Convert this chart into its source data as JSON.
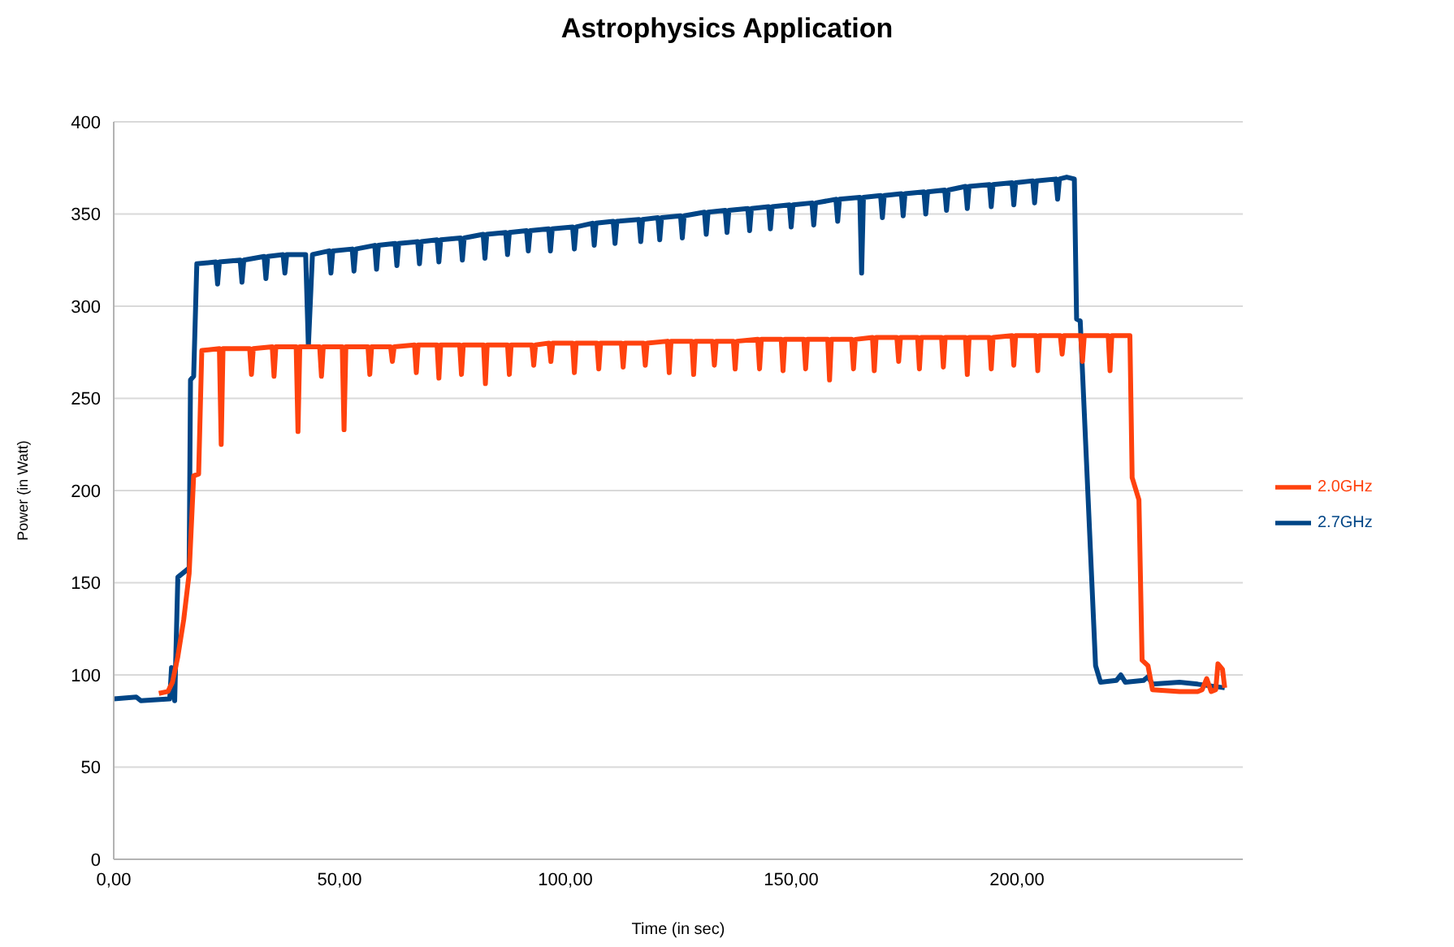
{
  "chart_data": {
    "type": "line",
    "title": "Astrophysics Application",
    "xlabel": "Time (in sec)",
    "ylabel": "Power (in Watt)",
    "xlim": [
      0,
      250
    ],
    "xticks": [
      {
        "value": 0,
        "label": "0,00"
      },
      {
        "value": 50,
        "label": "50,00"
      },
      {
        "value": 100,
        "label": "100,00"
      },
      {
        "value": 150,
        "label": "150,00"
      },
      {
        "value": 200,
        "label": "200,00"
      }
    ],
    "ylim": [
      0,
      400
    ],
    "yticks": [
      0,
      50,
      100,
      150,
      200,
      250,
      300,
      350,
      400
    ],
    "grid": "y",
    "legend": "right",
    "marker": "none",
    "line_style": "solid",
    "series": [
      {
        "name": "2.7GHz",
        "color": "#004586",
        "x": [
          0,
          5,
          6,
          12.4,
          12.8,
          13.5,
          14.2,
          16.7,
          17,
          17.7,
          18.4,
          22.6,
          23,
          23.4,
          28,
          28.4,
          28.8,
          33.3,
          33.7,
          34.1,
          37.5,
          37.9,
          38.3,
          42.5,
          43.1,
          44,
          47.7,
          48.1,
          48.5,
          52.8,
          53.2,
          53.6,
          57.8,
          58.2,
          58.6,
          62.3,
          62.7,
          63.1,
          67.3,
          67.7,
          68.1,
          71.6,
          72,
          72.4,
          76.8,
          77.2,
          77.6,
          81.8,
          82.2,
          82.6,
          86.8,
          87.2,
          87.6,
          91.4,
          91.8,
          92.2,
          96.3,
          96.7,
          97.1,
          101.6,
          102,
          102.4,
          106,
          106.4,
          106.8,
          110.6,
          111,
          111.4,
          116.3,
          116.7,
          117.1,
          120.5,
          120.9,
          121.3,
          125.5,
          125.9,
          126.3,
          130.8,
          131.2,
          131.6,
          135.4,
          135.8,
          136.2,
          140.4,
          140.8,
          141.2,
          145,
          145.4,
          145.8,
          149.6,
          150,
          150.4,
          154.6,
          155,
          155.4,
          159.9,
          160.3,
          160.7,
          165.2,
          165.6,
          166,
          169.8,
          170.2,
          170.6,
          174.4,
          174.8,
          175.2,
          179.4,
          179.8,
          180.2,
          184,
          184.4,
          184.8,
          188.6,
          189,
          189.4,
          193.9,
          194.3,
          194.7,
          198.9,
          199.3,
          199.7,
          203.5,
          203.9,
          204.3,
          208.6,
          209,
          209.4,
          211,
          212.7,
          213.2,
          214,
          217.4,
          218.5,
          222,
          223,
          224,
          228,
          229,
          230,
          236,
          240,
          246
        ],
        "values": [
          87,
          88,
          86,
          87,
          104,
          86,
          153,
          158,
          260,
          262,
          323,
          324,
          312,
          324,
          325,
          313,
          325,
          327,
          315,
          327,
          328,
          318,
          328,
          328,
          278,
          328,
          330,
          318,
          330,
          331,
          319,
          331,
          333,
          320,
          333,
          334,
          322,
          334,
          335,
          323,
          335,
          336,
          324,
          336,
          337,
          325,
          337,
          339,
          326,
          339,
          340,
          328,
          340,
          341,
          330,
          341,
          342,
          330,
          342,
          343,
          331,
          343,
          345,
          333,
          345,
          346,
          334,
          346,
          347,
          335,
          347,
          348,
          336,
          348,
          349,
          337,
          349,
          351,
          339,
          351,
          352,
          340,
          352,
          353,
          341,
          353,
          354,
          342,
          354,
          355,
          343,
          355,
          356,
          344,
          356,
          358,
          346,
          358,
          359,
          318,
          359,
          360,
          348,
          360,
          361,
          349,
          361,
          362,
          350,
          362,
          363,
          352,
          363,
          365,
          353,
          365,
          366,
          354,
          366,
          367,
          355,
          367,
          368,
          356,
          368,
          369,
          358,
          369,
          370,
          369,
          293,
          292,
          105,
          96,
          97,
          100,
          96,
          97,
          99,
          95,
          96,
          95,
          93
        ]
      },
      {
        "name": "2.0GHz",
        "color": "#ff420e",
        "x": [
          10,
          12,
          13,
          14.2,
          15.5,
          16.7,
          17.7,
          18.8,
          19.5,
          23.4,
          23.8,
          24.2,
          30.1,
          30.5,
          30.9,
          35.1,
          35.5,
          35.9,
          40.4,
          40.8,
          41.2,
          45.6,
          46,
          46.4,
          50.6,
          51,
          51.4,
          56.3,
          56.7,
          57.1,
          61.3,
          61.7,
          62.1,
          66.6,
          67,
          67.4,
          71.6,
          72,
          72.4,
          76.6,
          77,
          77.4,
          81.9,
          82.3,
          82.7,
          87.2,
          87.6,
          88,
          92.6,
          93,
          93.4,
          96.4,
          96.8,
          97.2,
          101.6,
          102,
          102.4,
          107,
          107.4,
          107.8,
          112.4,
          112.8,
          113.2,
          117.3,
          117.7,
          118.1,
          122.6,
          123,
          123.4,
          128,
          128.4,
          128.8,
          132.6,
          133,
          133.4,
          137.2,
          137.6,
          138,
          142.6,
          143,
          143.4,
          147.8,
          148.2,
          148.6,
          152.8,
          153.2,
          153.6,
          158.1,
          158.5,
          158.9,
          163.4,
          163.8,
          164.2,
          168,
          168.4,
          168.8,
          173.4,
          173.8,
          174.2,
          178,
          178.4,
          178.8,
          183.3,
          183.7,
          184.1,
          188.6,
          189,
          189.4,
          193.9,
          194.3,
          194.7,
          198.9,
          199.3,
          199.7,
          204.2,
          204.6,
          205,
          209.6,
          210,
          210.4,
          214.1,
          214.5,
          214.9,
          220.2,
          220.6,
          221,
          225,
          225.5,
          227,
          227.7,
          229,
          230,
          236,
          240,
          241,
          242,
          243,
          244,
          244.5,
          245.5,
          246
        ],
        "values": [
          90,
          91,
          96,
          110,
          130,
          155,
          208,
          209,
          276,
          277,
          225,
          277,
          277,
          263,
          277,
          278,
          262,
          278,
          278,
          232,
          278,
          278,
          262,
          278,
          278,
          233,
          278,
          278,
          263,
          278,
          278,
          270,
          278,
          279,
          264,
          279,
          279,
          261,
          279,
          279,
          263,
          279,
          279,
          258,
          279,
          279,
          263,
          279,
          279,
          268,
          279,
          280,
          270,
          280,
          280,
          264,
          280,
          280,
          266,
          280,
          280,
          267,
          280,
          280,
          268,
          280,
          281,
          264,
          281,
          281,
          263,
          281,
          281,
          268,
          281,
          281,
          266,
          281,
          282,
          266,
          282,
          282,
          265,
          282,
          282,
          266,
          282,
          282,
          260,
          282,
          282,
          266,
          282,
          283,
          265,
          283,
          283,
          270,
          283,
          283,
          266,
          283,
          283,
          267,
          283,
          283,
          263,
          283,
          283,
          266,
          283,
          284,
          268,
          284,
          284,
          265,
          284,
          284,
          274,
          284,
          284,
          270,
          284,
          284,
          265,
          284,
          284,
          207,
          195,
          108,
          105,
          92,
          91,
          91,
          92,
          98,
          91,
          92,
          106,
          103,
          93
        ]
      }
    ]
  }
}
